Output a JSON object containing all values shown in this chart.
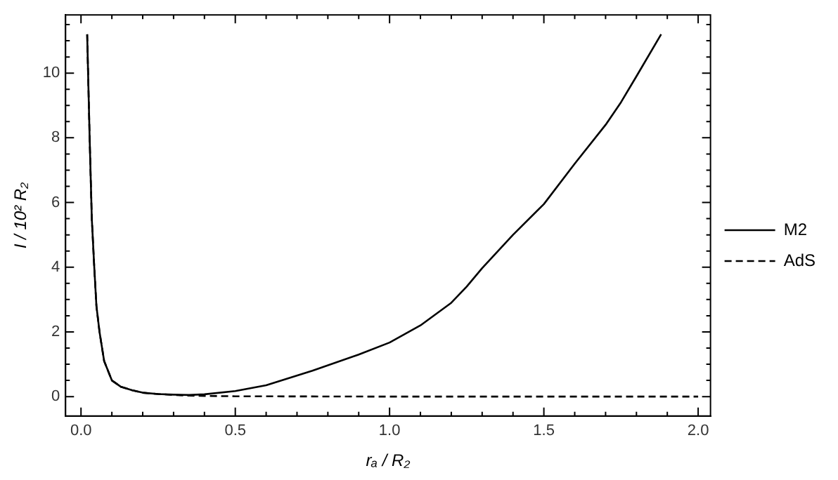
{
  "chart_data": {
    "type": "line",
    "xlabel": "rₐ / R₂",
    "ylabel": "I / 10² R₂",
    "xlim": [
      -0.05,
      2.04
    ],
    "ylim": [
      -0.6,
      11.8
    ],
    "xticks": [
      {
        "value": 0,
        "label": "0.0"
      },
      {
        "value": 0.1,
        "label": null
      },
      {
        "value": 0.2,
        "label": null
      },
      {
        "value": 0.3,
        "label": null
      },
      {
        "value": 0.4,
        "label": null
      },
      0.5,
      {
        "value": 0.6,
        "label": null
      },
      {
        "value": 0.7,
        "label": null
      },
      {
        "value": 0.8,
        "label": null
      },
      {
        "value": 0.9,
        "label": null
      },
      {
        "value": 1,
        "label": "1.0"
      },
      {
        "value": 1.1,
        "label": null
      },
      {
        "value": 1.2,
        "label": null
      },
      {
        "value": 1.3,
        "label": null
      },
      {
        "value": 1.4,
        "label": null
      },
      1.5,
      {
        "value": 1.6,
        "label": null
      },
      {
        "value": 1.7,
        "label": null
      },
      {
        "value": 1.8,
        "label": null
      },
      {
        "value": 1.9,
        "label": null
      },
      {
        "value": 2,
        "label": "2.0"
      }
    ],
    "yticks": [
      0,
      {
        "value": 0.5,
        "label": null
      },
      {
        "value": 1,
        "label": null
      },
      {
        "value": 1.5,
        "label": null
      },
      2,
      {
        "value": 2.5,
        "label": null
      },
      {
        "value": 3,
        "label": null
      },
      {
        "value": 3.5,
        "label": null
      },
      4,
      {
        "value": 4.5,
        "label": null
      },
      {
        "value": 5,
        "label": null
      },
      {
        "value": 5.5,
        "label": null
      },
      6,
      {
        "value": 6.5,
        "label": null
      },
      {
        "value": 7,
        "label": null
      },
      {
        "value": 7.5,
        "label": null
      },
      8,
      {
        "value": 8.5,
        "label": null
      },
      {
        "value": 9,
        "label": null
      },
      {
        "value": 9.5,
        "label": null
      },
      10,
      {
        "value": 10.5,
        "label": null
      },
      {
        "value": 11,
        "label": null
      },
      {
        "value": 11.5,
        "label": null
      }
    ],
    "legend": "right",
    "grid": false,
    "marker": "none",
    "series": [
      {
        "name": "M2",
        "color": "#000000",
        "line_style": "solid",
        "x": [
          0.02,
          0.028,
          0.035,
          0.043,
          0.05,
          0.06,
          0.075,
          0.1,
          0.13,
          0.165,
          0.2,
          0.25,
          0.3,
          0.35,
          0.4,
          0.5,
          0.6,
          0.75,
          0.9,
          1.0,
          1.1,
          1.2,
          1.25,
          1.3,
          1.4,
          1.5,
          1.6,
          1.7,
          1.75,
          1.8,
          1.88
        ],
        "values": [
          11.2,
          8,
          5.5,
          4,
          2.8,
          2,
          1.1,
          0.5,
          0.3,
          0.2,
          0.12,
          0.08,
          0.06,
          0.05,
          0.07,
          0.17,
          0.35,
          0.8,
          1.3,
          1.67,
          2.2,
          2.9,
          3.4,
          3.97,
          5,
          5.95,
          7.2,
          8.4,
          9.1,
          9.9,
          11.2
        ]
      },
      {
        "name": "AdS",
        "color": "#000000",
        "line_style": "dashed",
        "x": [
          0.02,
          0.028,
          0.035,
          0.043,
          0.05,
          0.06,
          0.075,
          0.1,
          0.13,
          0.165,
          0.2,
          0.25,
          0.3,
          0.35,
          0.4,
          0.5,
          1.0,
          1.5,
          2.0
        ],
        "values": [
          11.2,
          8,
          5.5,
          4,
          2.8,
          2,
          1.1,
          0.5,
          0.3,
          0.2,
          0.12,
          0.08,
          0.05,
          0.03,
          0.02,
          0.01,
          0,
          0,
          0
        ]
      }
    ]
  }
}
